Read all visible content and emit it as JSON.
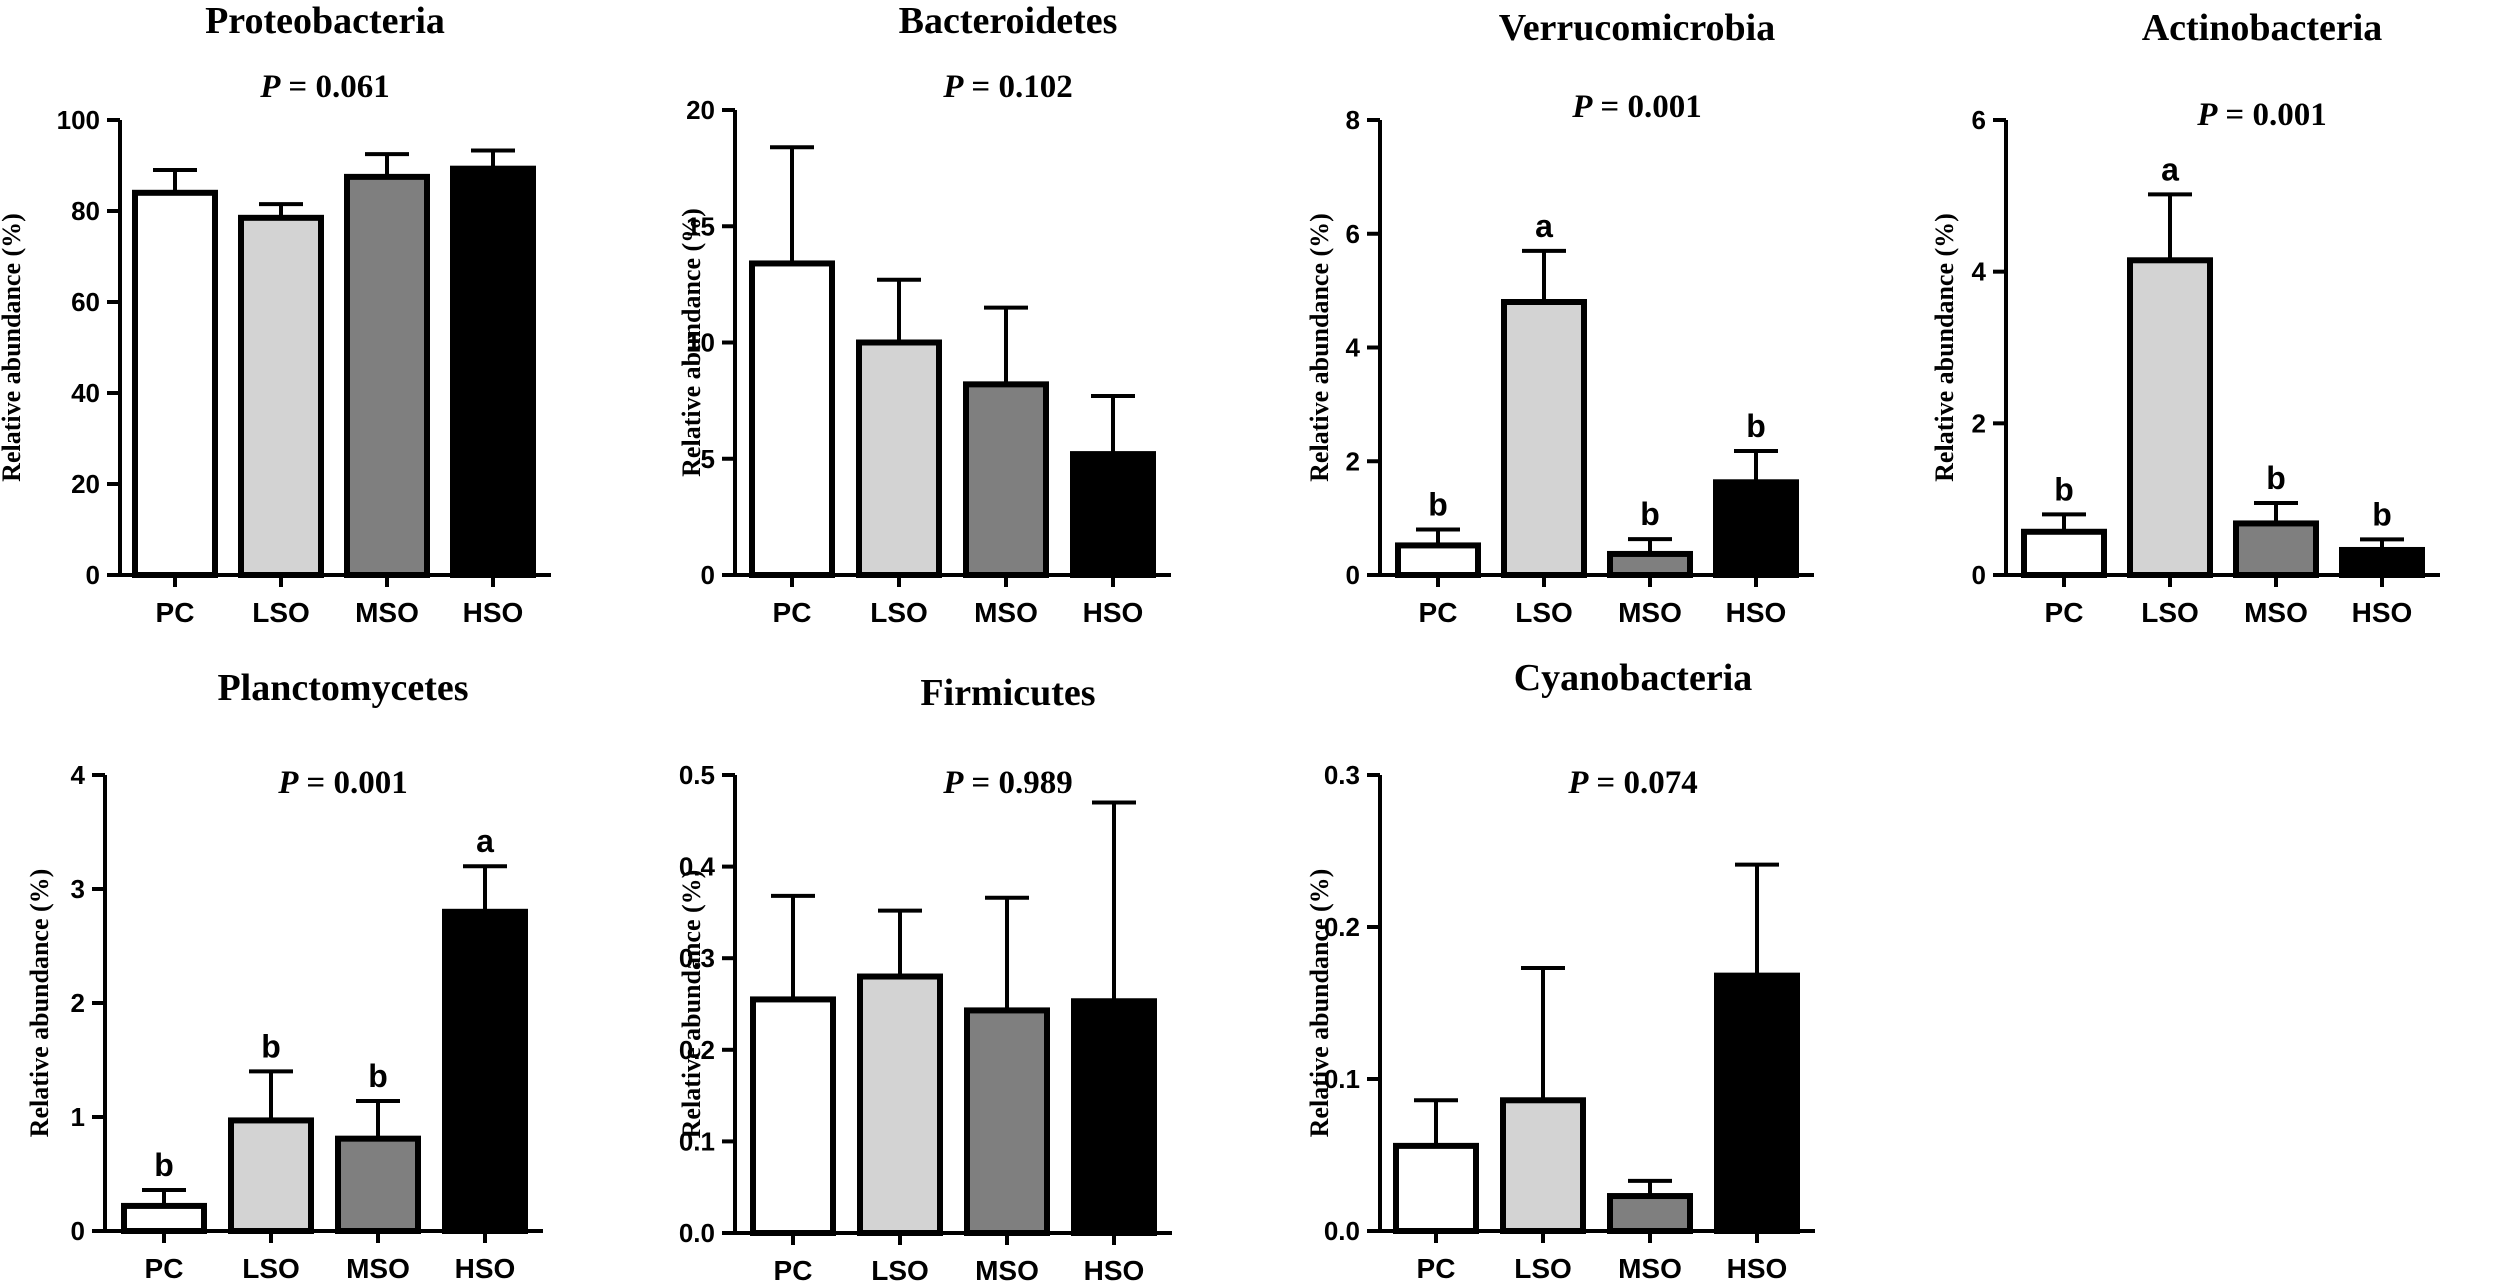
{
  "chart_data": [
    {
      "type": "bar",
      "title": "Proteobacteria",
      "p_label": "P",
      "p_value": "= 0.061",
      "ylabel": "Relative abundance (%)",
      "categories": [
        "PC",
        "LSO",
        "MSO",
        "HSO"
      ],
      "values": [
        84.0,
        78.5,
        87.5,
        89.3
      ],
      "errors": [
        5.0,
        3.0,
        5.0,
        4.0
      ],
      "letters": [
        "",
        "",
        "",
        ""
      ],
      "ylim": [
        0,
        100
      ],
      "yticks": [
        "0",
        "20",
        "40",
        "60",
        "80",
        "100"
      ],
      "colors": [
        "#ffffff",
        "#d3d3d3",
        "#7f7f7f",
        "#000000"
      ]
    },
    {
      "type": "bar",
      "title": "Bacteroidetes",
      "p_label": "P",
      "p_value": "= 0.102",
      "ylabel": "Relative abundance (%)",
      "categories": [
        "PC",
        "LSO",
        "MSO",
        "HSO"
      ],
      "values": [
        13.4,
        10.0,
        8.2,
        5.2
      ],
      "errors": [
        5.0,
        2.7,
        3.3,
        2.5
      ],
      "letters": [
        "",
        "",
        "",
        ""
      ],
      "ylim": [
        0,
        20
      ],
      "yticks": [
        "0",
        "5",
        "10",
        "15",
        "20"
      ],
      "colors": [
        "#ffffff",
        "#d3d3d3",
        "#7f7f7f",
        "#000000"
      ]
    },
    {
      "type": "bar",
      "title": "Verrucomicrobia",
      "p_label": "P",
      "p_value": "= 0.001",
      "ylabel": "Relative abundance (%)",
      "categories": [
        "PC",
        "LSO",
        "MSO",
        "HSO"
      ],
      "values": [
        0.52,
        4.8,
        0.37,
        1.63
      ],
      "errors": [
        0.28,
        0.9,
        0.26,
        0.55
      ],
      "letters": [
        "b",
        "a",
        "b",
        "b"
      ],
      "ylim": [
        0,
        8
      ],
      "yticks": [
        "0",
        "2",
        "4",
        "6",
        "8"
      ],
      "colors": [
        "#ffffff",
        "#d3d3d3",
        "#7f7f7f",
        "#000000"
      ]
    },
    {
      "type": "bar",
      "title": "Actinobacteria",
      "p_label": "P",
      "p_value": "= 0.001",
      "ylabel": "Relative abundance (%)",
      "categories": [
        "PC",
        "LSO",
        "MSO",
        "HSO"
      ],
      "values": [
        0.57,
        4.15,
        0.68,
        0.33
      ],
      "errors": [
        0.23,
        0.87,
        0.27,
        0.14
      ],
      "letters": [
        "b",
        "a",
        "b",
        "b"
      ],
      "ylim": [
        0,
        6
      ],
      "yticks": [
        "0",
        "2",
        "4",
        "6"
      ],
      "colors": [
        "#ffffff",
        "#d3d3d3",
        "#7f7f7f",
        "#000000"
      ]
    },
    {
      "type": "bar",
      "title": "Planctomycetes",
      "p_label": "P",
      "p_value": "= 0.001",
      "ylabel": "Relative abundance (%)",
      "categories": [
        "PC",
        "LSO",
        "MSO",
        "HSO"
      ],
      "values": [
        0.22,
        0.97,
        0.81,
        2.8
      ],
      "errors": [
        0.14,
        0.43,
        0.33,
        0.4
      ],
      "letters": [
        "b",
        "b",
        "b",
        "a"
      ],
      "ylim": [
        0,
        4
      ],
      "yticks": [
        "0",
        "1",
        "2",
        "3",
        "4"
      ],
      "colors": [
        "#ffffff",
        "#d3d3d3",
        "#7f7f7f",
        "#000000"
      ]
    },
    {
      "type": "bar",
      "title": "Firmicutes",
      "p_label": "P",
      "p_value": "= 0.989",
      "ylabel": "Relative abundance (%)",
      "categories": [
        "PC",
        "LSO",
        "MSO",
        "HSO"
      ],
      "values": [
        0.255,
        0.28,
        0.243,
        0.253
      ],
      "errors": [
        0.113,
        0.072,
        0.123,
        0.217
      ],
      "letters": [
        "",
        "",
        "",
        ""
      ],
      "ylim": [
        0,
        0.5
      ],
      "yticks": [
        "0.0",
        "0.1",
        "0.2",
        "0.3",
        "0.4",
        "0.5"
      ],
      "colors": [
        "#ffffff",
        "#d3d3d3",
        "#7f7f7f",
        "#000000"
      ]
    },
    {
      "type": "bar",
      "title": "Cyanobacteria",
      "p_label": "P",
      "p_value": "= 0.074",
      "ylabel": "Relative abundance (%)",
      "categories": [
        "PC",
        "LSO",
        "MSO",
        "HSO"
      ],
      "values": [
        0.056,
        0.086,
        0.023,
        0.168
      ],
      "errors": [
        0.03,
        0.087,
        0.01,
        0.073
      ],
      "letters": [
        "",
        "",
        "",
        ""
      ],
      "ylim": [
        0,
        0.3
      ],
      "yticks": [
        "0.0",
        "0.1",
        "0.2",
        "0.3"
      ],
      "colors": [
        "#ffffff",
        "#d3d3d3",
        "#7f7f7f",
        "#000000"
      ]
    }
  ]
}
